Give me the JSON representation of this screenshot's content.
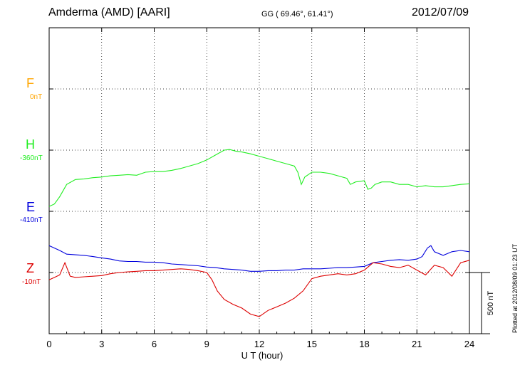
{
  "header": {
    "station": "Amderma (AMD)  [AARI]",
    "coords": "GG ( 69.46°,  61.41°)",
    "date": "2012/07/09"
  },
  "footer": {
    "plotted": "Plotted at 2012/08/09 01:23 UT"
  },
  "colors": {
    "F": "#ffa500",
    "H": "#22ee22",
    "E": "#0000dd",
    "Z": "#dd0000",
    "grid": "#000000"
  },
  "chart_data": {
    "type": "line",
    "title": "Amderma (AMD)  [AARI]",
    "xlabel": "U T (hour)",
    "ylabel": "",
    "xlim": [
      0,
      24
    ],
    "xticks": [
      0,
      3,
      6,
      9,
      12,
      15,
      18,
      21,
      24
    ],
    "grid": true,
    "scale_bar": "500 nT",
    "channel_labels": [
      {
        "name": "F",
        "baseline": "0nT"
      },
      {
        "name": "H",
        "baseline": "-360nT"
      },
      {
        "name": "E",
        "baseline": "-410nT"
      },
      {
        "name": "Z",
        "baseline": "-10nT"
      }
    ],
    "series": [
      {
        "name": "H",
        "x": [
          0,
          0.3,
          0.6,
          1,
          1.5,
          2,
          2.5,
          3,
          3.5,
          4,
          4.5,
          5,
          5.5,
          6,
          6.5,
          7,
          7.5,
          8,
          8.5,
          9,
          9.5,
          10,
          10.3,
          10.7,
          11,
          11.5,
          12,
          12.5,
          13,
          13.5,
          14,
          14.2,
          14.4,
          14.6,
          14.8,
          15,
          15.5,
          16,
          16.5,
          17,
          17.2,
          17.5,
          18,
          18.2,
          18.4,
          18.6,
          19,
          19.5,
          20,
          20.5,
          21,
          21.5,
          22,
          22.5,
          23,
          23.5,
          24
        ],
        "y": [
          -460,
          -440,
          -380,
          -280,
          -240,
          -235,
          -225,
          -220,
          -210,
          -205,
          -200,
          -205,
          -180,
          -175,
          -175,
          -165,
          -150,
          -130,
          -110,
          -80,
          -40,
          0,
          5,
          -10,
          -15,
          -30,
          -50,
          -70,
          -90,
          -110,
          -130,
          -180,
          -280,
          -220,
          -200,
          -180,
          -180,
          -190,
          -210,
          -230,
          -280,
          -260,
          -250,
          -320,
          -310,
          -280,
          -260,
          -260,
          -280,
          -280,
          -300,
          -290,
          -300,
          -300,
          -290,
          -280,
          -275
        ]
      },
      {
        "name": "E",
        "x": [
          0,
          0.3,
          0.6,
          1,
          1.5,
          2,
          2.5,
          3,
          3.5,
          4,
          4.5,
          5,
          5.5,
          6,
          6.5,
          7,
          7.5,
          8,
          8.5,
          9,
          9.5,
          10,
          10.5,
          11,
          11.5,
          12,
          12.5,
          13,
          13.5,
          14,
          14.5,
          15,
          15.5,
          16,
          16.5,
          17,
          17.5,
          18,
          18.5,
          19,
          19.5,
          20,
          20.5,
          21,
          21.3,
          21.6,
          21.8,
          22,
          22.5,
          23,
          23.5,
          24
        ],
        "y": [
          -280,
          -300,
          -320,
          -350,
          -355,
          -360,
          -370,
          -380,
          -390,
          -405,
          -410,
          -410,
          -415,
          -415,
          -420,
          -430,
          -435,
          -440,
          -445,
          -455,
          -460,
          -470,
          -475,
          -480,
          -490,
          -490,
          -485,
          -485,
          -480,
          -480,
          -470,
          -470,
          -470,
          -465,
          -460,
          -460,
          -455,
          -450,
          -420,
          -410,
          -400,
          -395,
          -400,
          -390,
          -370,
          -300,
          -280,
          -330,
          -360,
          -330,
          -320,
          -330
        ]
      },
      {
        "name": "Z",
        "x": [
          0,
          0.3,
          0.6,
          0.9,
          1.2,
          1.5,
          2,
          2.5,
          3,
          3.5,
          4,
          4.5,
          5,
          5.5,
          6,
          6.5,
          7,
          7.5,
          8,
          8.5,
          9,
          9.3,
          9.6,
          10,
          10.5,
          11,
          11.5,
          12,
          12.5,
          13,
          13.5,
          14,
          14.5,
          15,
          15.5,
          16,
          16.5,
          17,
          17.5,
          18,
          18.5,
          19,
          19.5,
          20,
          20.5,
          21,
          21.5,
          22,
          22.5,
          23,
          23.5,
          24
        ],
        "y": [
          -60,
          -40,
          -20,
          80,
          -30,
          -40,
          -35,
          -30,
          -25,
          -10,
          0,
          5,
          10,
          15,
          15,
          20,
          25,
          30,
          25,
          15,
          0,
          -60,
          -150,
          -220,
          -260,
          -290,
          -340,
          -360,
          -310,
          -280,
          -250,
          -210,
          -150,
          -50,
          -30,
          -20,
          -10,
          -20,
          -10,
          20,
          80,
          70,
          50,
          40,
          60,
          20,
          -20,
          60,
          40,
          -30,
          80,
          100
        ]
      }
    ]
  }
}
